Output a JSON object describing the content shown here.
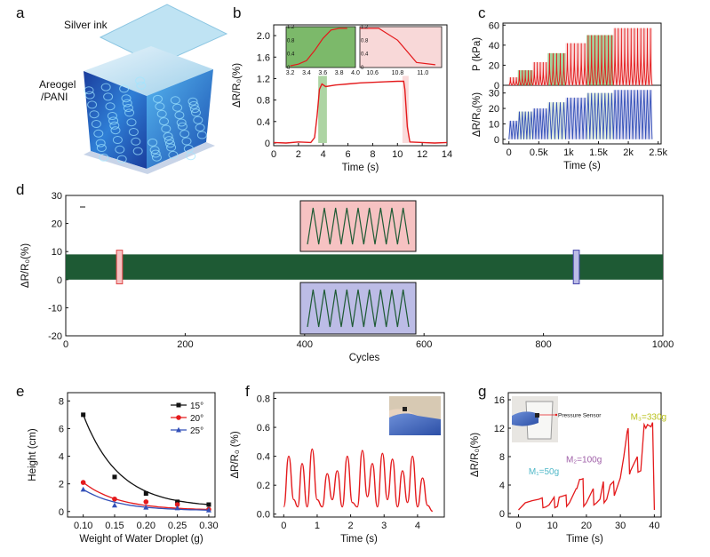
{
  "panels": {
    "a": "a",
    "b": "b",
    "c": "c",
    "d": "d",
    "e": "e",
    "f": "f",
    "g": "g"
  },
  "colors": {
    "red": "#e41a1c",
    "blue": "#3350b8",
    "green": "#1e5a34",
    "black": "#111111",
    "pink": "#f6c2c2",
    "green_fill": "#77b766",
    "lavender": "#bcbce6"
  },
  "icons": {
    "panel_a": "silver-ink-on-aerogel-cube-illustration",
    "panel_f": "sensor-on-gloved-wrist-photo",
    "panel_g": "pressure-sensor-on-hand-beaker-photo"
  },
  "illustration": {
    "silver_ink": "Silver ink",
    "aerogel_line1": "Areogel",
    "aerogel_line2": "/PANI"
  },
  "chart_data": [
    {
      "id": "b",
      "type": "line",
      "xlabel": "Time (s)",
      "ylabel": "ΔR/R₀(%)",
      "xlim": [
        0,
        14
      ],
      "ylim": [
        -0.05,
        2.2
      ],
      "xticks": [
        0,
        2,
        4,
        6,
        8,
        10,
        12,
        14
      ],
      "yticks": [
        0,
        0.4,
        0.8,
        1.2,
        1.6,
        2.0
      ],
      "xtick_labels": [
        "0",
        "2",
        "4",
        "6",
        "8",
        "10",
        "12",
        "14"
      ],
      "ytick_labels": [
        "0",
        "0.4",
        "0.8",
        "1.2",
        "1.6",
        "2.0"
      ],
      "series": [
        {
          "x": [
            0,
            1,
            2,
            3,
            3.3,
            3.5,
            3.7,
            3.9,
            4.2,
            5,
            6,
            7,
            8,
            9,
            10,
            10.5,
            10.6,
            10.8,
            11,
            12,
            13,
            14
          ],
          "y": [
            0.01,
            0.0,
            0.02,
            0.01,
            0.1,
            0.5,
            1.0,
            1.1,
            1.05,
            1.08,
            1.1,
            1.12,
            1.13,
            1.14,
            1.15,
            1.15,
            1.0,
            0.3,
            0.02,
            0.01,
            0.0,
            0.01
          ]
        }
      ],
      "insets": [
        {
          "xlim": [
            3.15,
            4.0
          ],
          "ylim": [
            0,
            1.2
          ],
          "xticks": [
            3.2,
            3.4,
            3.6,
            3.8,
            4.0
          ],
          "xtick_labels": [
            "3.2",
            "3.4",
            "3.6",
            "3.8",
            "4.0"
          ],
          "yticks": [
            0,
            0.4,
            0.8,
            1.2
          ],
          "ytick_labels": [
            "0",
            "0.4",
            "0.8",
            "1.2"
          ],
          "x": [
            3.2,
            3.3,
            3.4,
            3.5,
            3.6,
            3.7,
            3.8,
            3.9
          ],
          "y": [
            0.05,
            0.1,
            0.2,
            0.5,
            0.85,
            1.1,
            1.15,
            1.15
          ]
        },
        {
          "xlim": [
            10.5,
            11.15
          ],
          "ylim": [
            0,
            1.2
          ],
          "xticks": [
            10.6,
            10.8,
            11.0
          ],
          "xtick_labels": [
            "10.6",
            "10.8",
            "11.0"
          ],
          "yticks": [
            0,
            0.4,
            0.8,
            1.2
          ],
          "ytick_labels": [
            "0",
            "0.4",
            "0.8",
            "1.2"
          ],
          "x": [
            10.5,
            10.65,
            10.8,
            10.95,
            11.1
          ],
          "y": [
            1.15,
            1.15,
            0.8,
            0.15,
            0.08
          ]
        }
      ],
      "highlights": [
        {
          "x": [
            3.6,
            4.3
          ],
          "color": "green"
        },
        {
          "x": [
            10.4,
            10.9
          ],
          "color": "pink"
        }
      ]
    },
    {
      "id": "c",
      "type": "line",
      "xlabel": "Time (s)",
      "top": {
        "ylabel": "P (kPa)",
        "ylim": [
          0,
          62
        ],
        "yticks": [
          0,
          20,
          40,
          60
        ],
        "ytick_labels": [
          "0",
          "20",
          "40",
          "60"
        ]
      },
      "bottom": {
        "ylabel": "ΔR/R₀(%)",
        "ylim": [
          -3,
          35
        ],
        "yticks": [
          0,
          10,
          20,
          30
        ],
        "ytick_labels": [
          "0",
          "10",
          "20",
          "30"
        ]
      },
      "xlim": [
        -100,
        2550
      ],
      "xticks": [
        0,
        500,
        1000,
        1500,
        2000,
        2500
      ],
      "xtick_labels": [
        "0",
        "0.5k",
        "1k",
        "1.5k",
        "2k",
        "2.5k"
      ],
      "steps": [
        {
          "start": 0,
          "end": 150,
          "p": 8,
          "r": 12
        },
        {
          "start": 150,
          "end": 400,
          "p": 15,
          "r": 18
        },
        {
          "start": 400,
          "end": 650,
          "p": 23,
          "r": 20
        },
        {
          "start": 650,
          "end": 950,
          "p": 32,
          "r": 24
        },
        {
          "start": 950,
          "end": 1300,
          "p": 42,
          "r": 27
        },
        {
          "start": 1300,
          "end": 1750,
          "p": 50,
          "r": 30
        },
        {
          "start": 1750,
          "end": 2400,
          "p": 57,
          "r": 32
        }
      ]
    },
    {
      "id": "d",
      "type": "area",
      "xlabel": "Cycles",
      "ylabel": "ΔR/R₀(%)",
      "xlim": [
        0,
        1000
      ],
      "ylim": [
        -20,
        30
      ],
      "xticks": [
        0,
        200,
        400,
        600,
        800,
        1000
      ],
      "xtick_labels": [
        "0",
        "200",
        "400",
        "600",
        "800",
        "1000"
      ],
      "yticks": [
        -20,
        -10,
        0,
        10,
        20,
        30
      ],
      "ytick_labels": [
        "-20",
        "-10",
        "0",
        "10",
        "20",
        "30"
      ],
      "band": {
        "low": 0,
        "high": 9,
        "xmax": 1000
      },
      "markers": [
        {
          "x": [
            85,
            95
          ],
          "color": "pink"
        },
        {
          "x": [
            850,
            860
          ],
          "color": "lavender"
        }
      ],
      "zoom_insets": [
        {
          "color": "pink",
          "peaks": 9
        },
        {
          "color": "lavender",
          "peaks": 9
        }
      ]
    },
    {
      "id": "e",
      "type": "scatter",
      "xlabel": "Weight of Water Droplet (g)",
      "ylabel": "Height (cm)",
      "xlim": [
        0.075,
        0.31
      ],
      "ylim": [
        -0.4,
        8.6
      ],
      "xticks": [
        0.1,
        0.15,
        0.2,
        0.25,
        0.3
      ],
      "xtick_labels": [
        "0.10",
        "0.15",
        "0.20",
        "0.25",
        "0.30"
      ],
      "yticks": [
        0,
        2,
        4,
        6,
        8
      ],
      "ytick_labels": [
        "0",
        "2",
        "4",
        "6",
        "8"
      ],
      "legend": "top-right",
      "series": [
        {
          "name": "15°",
          "color": "black",
          "marker": "square",
          "x": [
            0.1,
            0.15,
            0.2,
            0.25,
            0.3
          ],
          "y": [
            7.0,
            2.5,
            1.3,
            0.7,
            0.5
          ]
        },
        {
          "name": "20°",
          "color": "red",
          "marker": "circle",
          "x": [
            0.1,
            0.15,
            0.2,
            0.25,
            0.3
          ],
          "y": [
            2.1,
            0.9,
            0.7,
            0.5,
            0.15
          ]
        },
        {
          "name": "25°",
          "color": "blue",
          "marker": "triangle",
          "x": [
            0.1,
            0.15,
            0.2,
            0.25,
            0.3
          ],
          "y": [
            1.6,
            0.45,
            0.3,
            0.25,
            0.1
          ]
        }
      ]
    },
    {
      "id": "f",
      "type": "line",
      "xlabel": "Time (s)",
      "ylabel": "ΔR/R₀ (%)",
      "xlim": [
        -0.3,
        4.8
      ],
      "ylim": [
        -0.02,
        0.84
      ],
      "xticks": [
        0,
        1,
        2,
        3,
        4
      ],
      "xtick_labels": [
        "0",
        "1",
        "2",
        "3",
        "4"
      ],
      "yticks": [
        0,
        0.2,
        0.4,
        0.6,
        0.8
      ],
      "ytick_labels": [
        "0.0",
        "0.2",
        "0.4",
        "0.6",
        "0.8"
      ],
      "series": [
        {
          "x": [
            0,
            0.15,
            0.3,
            0.42,
            0.55,
            0.7,
            0.85,
            1.0,
            1.15,
            1.3,
            1.45,
            1.6,
            1.75,
            1.9,
            2.05,
            2.2,
            2.35,
            2.5,
            2.65,
            2.8,
            2.95,
            3.1,
            3.25,
            3.4,
            3.55,
            3.7,
            3.85,
            4.0,
            4.15,
            4.3,
            4.45
          ],
          "y": [
            0.05,
            0.4,
            0.1,
            0.05,
            0.35,
            0.05,
            0.45,
            0.1,
            0.05,
            0.28,
            0.1,
            0.3,
            0.05,
            0.4,
            0.08,
            0.05,
            0.44,
            0.12,
            0.35,
            0.05,
            0.42,
            0.1,
            0.38,
            0.05,
            0.3,
            0.08,
            0.4,
            0.05,
            0.25,
            0.06,
            0.02
          ]
        }
      ]
    },
    {
      "id": "g",
      "type": "line",
      "xlabel": "Time (s)",
      "ylabel": "ΔR/R₀(%)",
      "xlim": [
        -3,
        42
      ],
      "ylim": [
        -0.5,
        17
      ],
      "xticks": [
        0,
        10,
        20,
        30,
        40
      ],
      "xtick_labels": [
        "0",
        "10",
        "20",
        "30",
        "40"
      ],
      "yticks": [
        0,
        4,
        8,
        12,
        16
      ],
      "ytick_labels": [
        "0",
        "4",
        "8",
        "12",
        "16"
      ],
      "annotations": [
        {
          "text": "M₁=50g",
          "color": "#4fb8c8",
          "x": 3,
          "y": 5.5
        },
        {
          "text": "M₂=100g",
          "color": "#a060a8",
          "x": 14,
          "y": 7.2
        },
        {
          "text": "M₃=330g",
          "color": "#b8c01a",
          "x": 33,
          "y": 13.2
        }
      ],
      "inset_label": "Pressure Sensor",
      "series": [
        {
          "x": [
            0,
            2,
            4,
            6,
            7,
            7.2,
            8,
            9,
            10.5,
            10.7,
            11.5,
            12,
            14,
            14.2,
            15,
            17,
            17.2,
            18,
            18.5,
            19,
            19.2,
            20,
            22,
            22.2,
            23,
            24,
            25,
            25.2,
            26,
            27,
            28,
            28.2,
            30,
            31,
            32,
            32.3,
            32.7,
            33,
            35,
            35.2,
            36,
            37,
            37.5,
            38,
            39,
            39.5,
            40
          ],
          "y": [
            0.5,
            1.5,
            1.8,
            2.0,
            2.2,
            0.8,
            0.9,
            1.2,
            2.3,
            0.8,
            1.0,
            2.3,
            2.6,
            1.0,
            1.5,
            3.5,
            3.5,
            4.8,
            4.8,
            4.9,
            1.0,
            1.5,
            3.5,
            1.2,
            1.5,
            2.0,
            4.5,
            1.5,
            2.0,
            4.0,
            4.5,
            2.5,
            5.0,
            8.0,
            11.5,
            12.0,
            5.5,
            6.0,
            8.0,
            5.8,
            6.0,
            12.5,
            12.0,
            12.5,
            12.2,
            12.8,
            0.5
          ]
        }
      ]
    }
  ]
}
